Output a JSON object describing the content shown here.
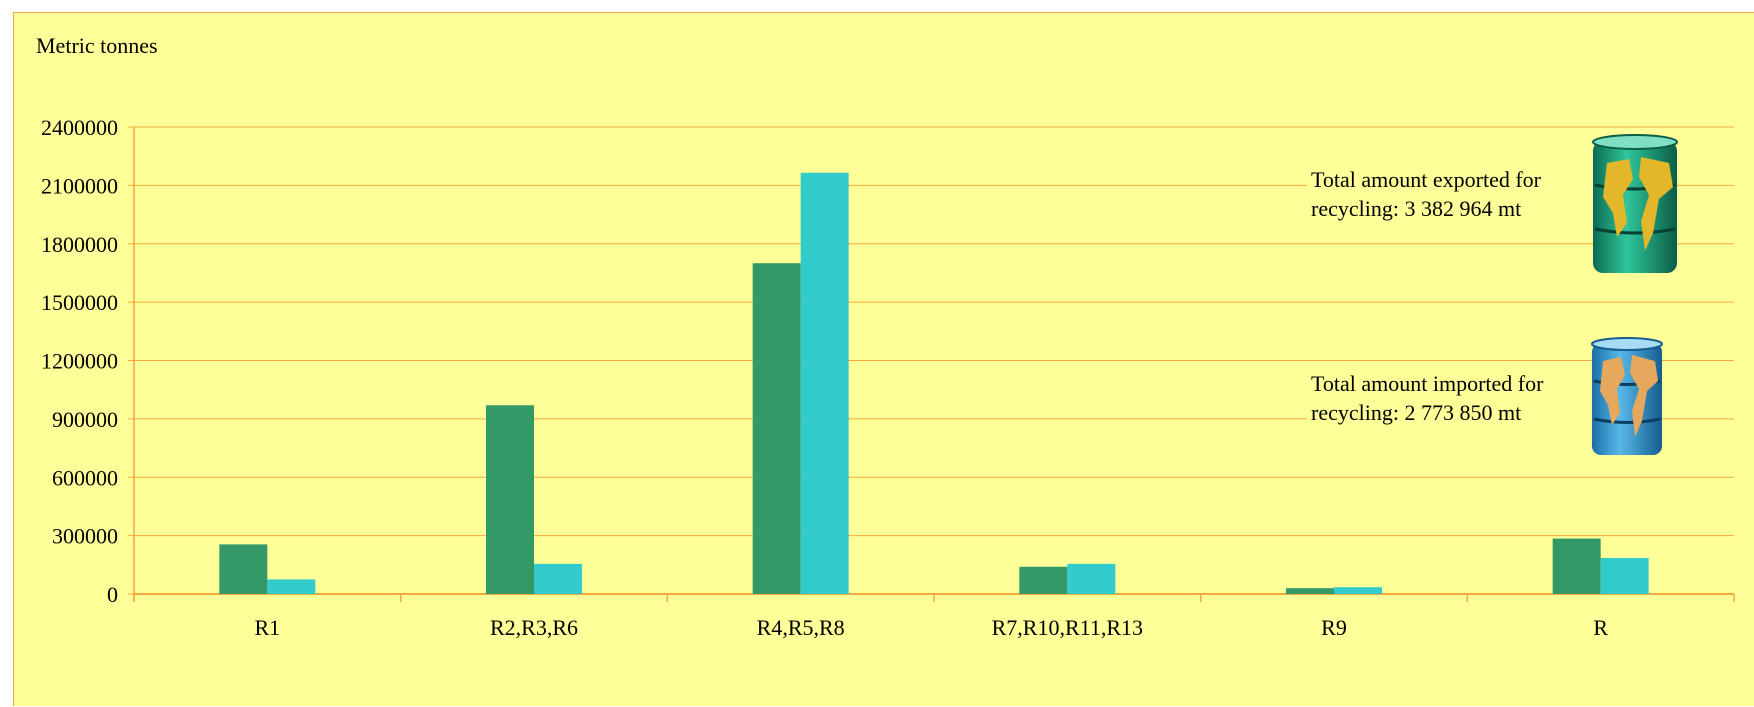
{
  "chart_data": {
    "type": "bar",
    "ylabel": "Metric tonnes",
    "ylim": [
      0,
      2400000
    ],
    "yticks": [
      "0",
      "300000",
      "600000",
      "900000",
      "1200000",
      "1500000",
      "1800000",
      "2100000",
      "2400000"
    ],
    "categories": [
      "R1",
      "R2,R3,R6",
      "R4,R5,R8",
      "R7,R10,R11,R13",
      "R9",
      "R"
    ],
    "series": [
      {
        "values": [
          255000,
          970000,
          1700000,
          140000,
          30000,
          285000
        ],
        "color": "#339966"
      },
      {
        "values": [
          75000,
          155000,
          2165000,
          155000,
          35000,
          185000
        ],
        "color": "#33cccc"
      }
    ],
    "grid": true,
    "annotations": [
      "Total amount exported for recycling: 3 382 964 mt",
      "Total amount imported for recycling: 2 773 850 mt"
    ]
  },
  "colors": {
    "background": "#ffff99",
    "gridline": "#f2a93b",
    "axis": "#f2a93b"
  },
  "icons": {
    "export": "green-globe-barrel-icon",
    "import": "blue-globe-barrel-icon"
  }
}
